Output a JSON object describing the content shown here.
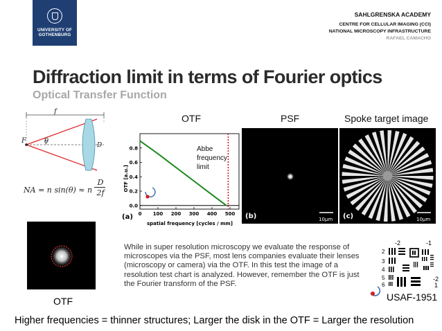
{
  "header": {
    "logo_line1": "UNIVERSITY OF",
    "logo_line2": "GOTHENBURG",
    "org1": "SAHLGRENSKA ACADEMY",
    "org2": "CENTRE FOR CELLULAR IMAGING (CCI)",
    "org3": "NATIONAL MICROSCOPY INFRASTRUCTURE",
    "author": "RAFAEL CAMACHO"
  },
  "title": "Diffraction limit in terms of Fourier optics",
  "subtitle": "Optical Transfer Function",
  "lens_diagram": {
    "f_label": "f",
    "F_label": "F",
    "theta_label": "θ",
    "D_label": "D",
    "formula": "NA = n sin(θ) ≈ n D/2f",
    "formula_lhs": "NA = n sin(θ) ≈ n",
    "formula_num": "D",
    "formula_den": "2f"
  },
  "panel_titles": {
    "otf": "OTF",
    "psf": "PSF",
    "spoke": "Spoke target image"
  },
  "chart_data": {
    "type": "line",
    "series": [
      {
        "x": [
          0,
          100,
          200,
          300,
          400,
          480
        ],
        "y": [
          0.9,
          0.72,
          0.53,
          0.34,
          0.15,
          0.0
        ]
      }
    ],
    "xlabel": "spatial frequency [cycles / mm]",
    "ylabel": "OTF [a.u.]",
    "xticks": [
      "0",
      "100",
      "200",
      "300",
      "400",
      "500"
    ],
    "yticks": [
      "0.0",
      "0.2",
      "0.4",
      "0.6",
      "0.8"
    ],
    "xlim": [
      0,
      550
    ],
    "ylim": [
      -0.05,
      1.0
    ],
    "annotation": [
      "Abbe",
      "frequency",
      "limit"
    ],
    "cutoff_x": 490,
    "colors": {
      "curve": "#1a8a1a",
      "cutoff": "#cc1111"
    }
  },
  "panel_tags": {
    "a": "(a)",
    "b": "(b)",
    "c": "(c)"
  },
  "scalebar_b": "10μm",
  "scalebar_c": "10μm",
  "otf_small_label": "OTF",
  "paragraph": "While in super resolution microscopy we evaluate the response of microscopes via the PSF, most lens companies evaluate their lenses (microscopy or camera) via the OTF. In this test the image of a resolution test chart is analyzed. However, remember the OTF is just the Fourier transform of the PSF.",
  "usaf": {
    "label": "USAF-1951",
    "top_left": "-2",
    "top_right": "-1",
    "left_nums": [
      "2",
      "3",
      "4",
      "5",
      "6"
    ],
    "right_neg": "-2",
    "right_one": "1"
  },
  "bottom_line": "Higher frequencies = thinner structures; Larger the disk in the OTF = Larger the resolution"
}
